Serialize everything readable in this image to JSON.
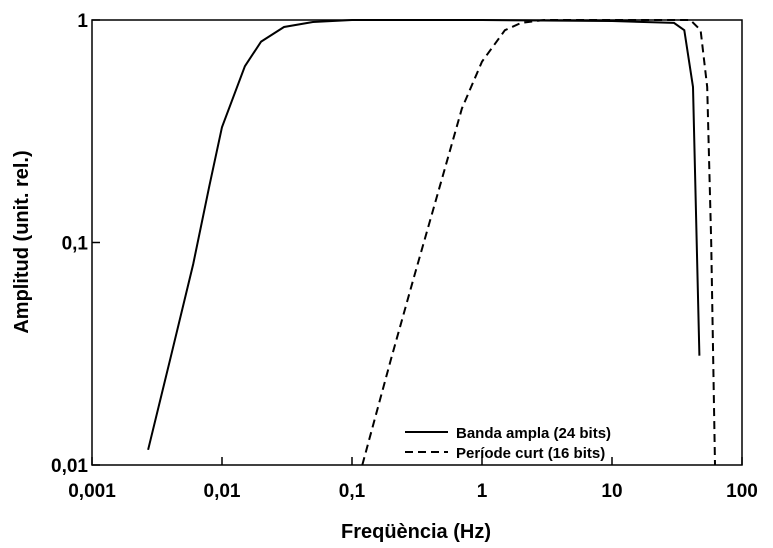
{
  "chart_data": {
    "type": "line",
    "xlabel": "Freqüència (Hz)",
    "ylabel": "Amplitud (unit. rel.)",
    "xscale": "log",
    "yscale": "log",
    "xlim": [
      0.001,
      100
    ],
    "ylim": [
      0.01,
      1
    ],
    "xticks": [
      {
        "value": 0.001,
        "label": "0,001"
      },
      {
        "value": 0.01,
        "label": "0,01"
      },
      {
        "value": 0.1,
        "label": "0,1"
      },
      1,
      10,
      100
    ],
    "yticks": [
      {
        "value": 0.01,
        "label": "0,01"
      },
      {
        "value": 0.1,
        "label": "0,1"
      },
      1
    ],
    "legend": "lower right",
    "series": [
      {
        "name": "Banda ampla (24 bits)",
        "color": "#000000",
        "dash": "solid",
        "x": [
          0.0027,
          0.004,
          0.006,
          0.008,
          0.01,
          0.015,
          0.02,
          0.03,
          0.05,
          0.1,
          1,
          10,
          30,
          36,
          42,
          47
        ],
        "values": [
          0.0117,
          0.03,
          0.08,
          0.18,
          0.33,
          0.62,
          0.8,
          0.93,
          0.98,
          1.0,
          1.0,
          0.99,
          0.97,
          0.9,
          0.5,
          0.031
        ]
      },
      {
        "name": "Període curt (16 bits)",
        "color": "#000000",
        "dash": "dashed",
        "x": [
          0.12,
          0.2,
          0.3,
          0.5,
          0.7,
          1,
          1.5,
          2,
          3,
          10,
          40,
          48,
          54,
          58,
          62
        ],
        "values": [
          0.01,
          0.03,
          0.07,
          0.2,
          0.4,
          0.65,
          0.9,
          0.97,
          1.0,
          1.0,
          1.0,
          0.9,
          0.5,
          0.1,
          0.01
        ]
      }
    ]
  }
}
